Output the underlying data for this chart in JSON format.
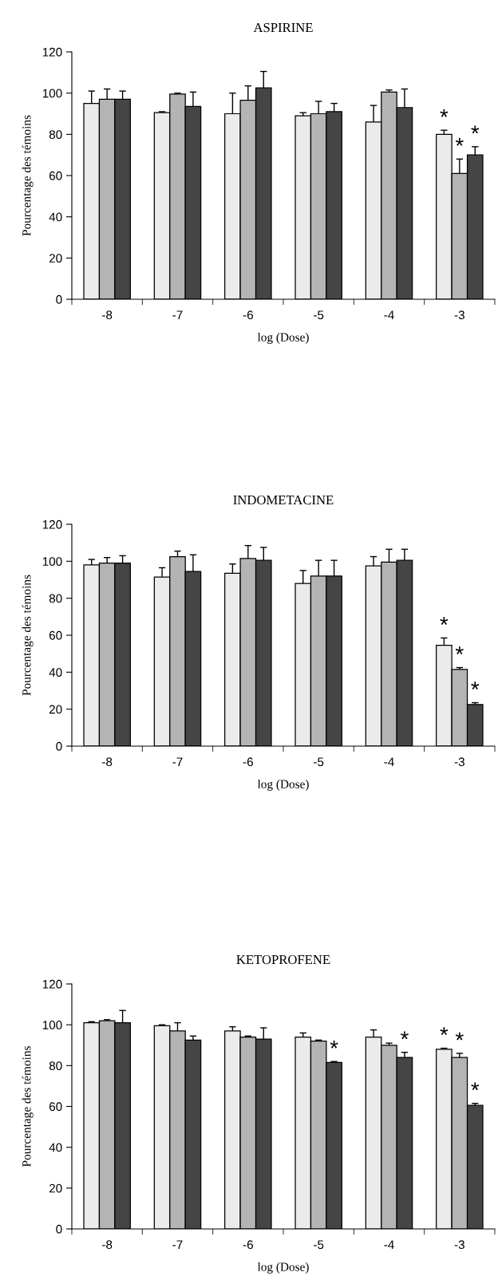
{
  "chart_data": [
    {
      "type": "bar",
      "title": "ASPIRINE",
      "xlabel": "log (Dose)",
      "ylabel": "Pourcentage des témoins",
      "categories": [
        "-8",
        "-7",
        "-6",
        "-5",
        "-4",
        "-3"
      ],
      "series": [
        {
          "color": "#ebebeb",
          "values": [
            95,
            90.5,
            90,
            89,
            86,
            80
          ],
          "errors": [
            6,
            0.5,
            10,
            1.5,
            8,
            2
          ],
          "value_labels": [
            null,
            null,
            null,
            null,
            null,
            "*"
          ]
        },
        {
          "color": "#b4b4b4",
          "values": [
            97,
            99.5,
            96.5,
            90,
            100.5,
            61
          ],
          "errors": [
            5,
            0.5,
            7,
            6,
            1,
            7
          ],
          "value_labels": [
            null,
            null,
            null,
            null,
            null,
            "*"
          ]
        },
        {
          "color": "#454545",
          "values": [
            97,
            93.5,
            102.5,
            91,
            93,
            70
          ],
          "errors": [
            4,
            7,
            8,
            4,
            9,
            4
          ],
          "value_labels": [
            null,
            null,
            null,
            null,
            null,
            "*"
          ]
        }
      ],
      "ylim": [
        0,
        120
      ],
      "yticks": [
        0,
        20,
        40,
        60,
        80,
        100,
        120
      ],
      "grid": false,
      "legend": false
    },
    {
      "type": "bar",
      "title": "INDOMETACINE",
      "xlabel": "log (Dose)",
      "ylabel": "Pourcentage des témoins",
      "categories": [
        "-8",
        "-7",
        "-6",
        "-5",
        "-4",
        "-3"
      ],
      "series": [
        {
          "color": "#ebebeb",
          "values": [
            98,
            91.5,
            93.5,
            88,
            97.5,
            54.5
          ],
          "errors": [
            3,
            5,
            5,
            7,
            5,
            4
          ],
          "value_labels": [
            null,
            null,
            null,
            null,
            null,
            "*"
          ]
        },
        {
          "color": "#b4b4b4",
          "values": [
            99,
            102.5,
            101.5,
            92,
            99.5,
            41.5
          ],
          "errors": [
            3,
            3,
            7,
            8.5,
            7,
            1
          ],
          "value_labels": [
            null,
            null,
            null,
            null,
            null,
            "*"
          ]
        },
        {
          "color": "#454545",
          "values": [
            99,
            94.5,
            100.5,
            92,
            100.5,
            22.5
          ],
          "errors": [
            4,
            9,
            7,
            8.5,
            6,
            1
          ],
          "value_labels": [
            null,
            null,
            null,
            null,
            null,
            "*"
          ]
        }
      ],
      "ylim": [
        0,
        120
      ],
      "yticks": [
        0,
        20,
        40,
        60,
        80,
        100,
        120
      ],
      "grid": false,
      "legend": false
    },
    {
      "type": "bar",
      "title": "KETOPROFENE",
      "xlabel": "log (Dose)",
      "ylabel": "Pourcentage des témoins",
      "categories": [
        "-8",
        "-7",
        "-6",
        "-5",
        "-4",
        "-3"
      ],
      "series": [
        {
          "color": "#ebebeb",
          "values": [
            101,
            99.5,
            97,
            94,
            94,
            88
          ],
          "errors": [
            0.5,
            0.5,
            2,
            2,
            3.5,
            0.5
          ],
          "value_labels": [
            null,
            null,
            null,
            null,
            null,
            "*"
          ]
        },
        {
          "color": "#b4b4b4",
          "values": [
            102,
            97,
            94,
            92,
            90,
            84
          ],
          "errors": [
            0.5,
            4,
            0.5,
            0.5,
            1,
            2
          ],
          "value_labels": [
            null,
            null,
            null,
            null,
            null,
            "*"
          ]
        },
        {
          "color": "#454545",
          "values": [
            101,
            92.5,
            93,
            81.5,
            84,
            60.5
          ],
          "errors": [
            6,
            2,
            5.5,
            0.5,
            2.5,
            1
          ],
          "value_labels": [
            null,
            null,
            null,
            "*",
            "*",
            "*"
          ]
        }
      ],
      "ylim": [
        0,
        120
      ],
      "yticks": [
        0,
        20,
        40,
        60,
        80,
        100,
        120
      ],
      "grid": false,
      "legend": false
    }
  ]
}
